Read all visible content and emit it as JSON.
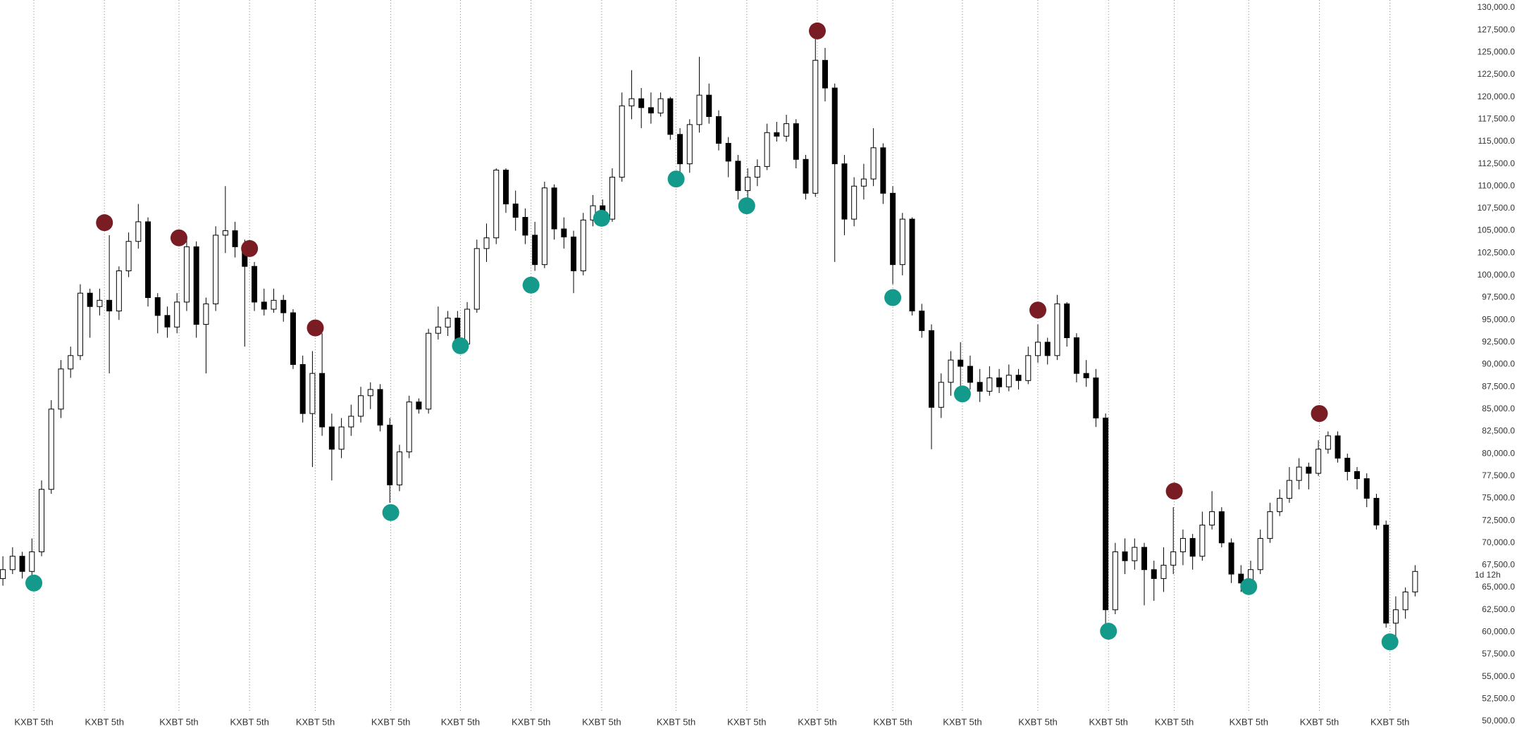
{
  "chart_data": {
    "type": "candlestick",
    "up_color": "#ffffff",
    "down_color": "#000000",
    "outline_color": "#000000",
    "countdown": "1d 12h",
    "xlim": [
      -0.3,
      146.7
    ],
    "xticks": [
      {
        "value": 3.2,
        "label": "KXBT 5th"
      },
      {
        "value": 10.5,
        "label": "KXBT 5th"
      },
      {
        "value": 18.2,
        "label": "KXBT 5th"
      },
      {
        "value": 25.5,
        "label": "KXBT 5th"
      },
      {
        "value": 32.3,
        "label": "KXBT 5th"
      },
      {
        "value": 40.1,
        "label": "KXBT 5th"
      },
      {
        "value": 47.3,
        "label": "KXBT 5th"
      },
      {
        "value": 54.6,
        "label": "KXBT 5th"
      },
      {
        "value": 61.9,
        "label": "KXBT 5th"
      },
      {
        "value": 69.6,
        "label": "KXBT 5th"
      },
      {
        "value": 76.9,
        "label": "KXBT 5th"
      },
      {
        "value": 84.2,
        "label": "KXBT 5th"
      },
      {
        "value": 92.0,
        "label": "KXBT 5th"
      },
      {
        "value": 99.2,
        "label": "KXBT 5th"
      },
      {
        "value": 107.0,
        "label": "KXBT 5th"
      },
      {
        "value": 114.3,
        "label": "KXBT 5th"
      },
      {
        "value": 121.1,
        "label": "KXBT 5th"
      },
      {
        "value": 128.8,
        "label": "KXBT 5th"
      },
      {
        "value": 136.1,
        "label": "KXBT 5th"
      },
      {
        "value": 143.4,
        "label": "KXBT 5th"
      }
    ],
    "grid": "x-dotted",
    "ylim": [
      50000,
      130000
    ],
    "yticks": [
      {
        "value": 130000,
        "label": "130,000.0"
      },
      {
        "value": 127500,
        "label": "127,500.0"
      },
      {
        "value": 125000,
        "label": "125,000.0"
      },
      {
        "value": 122500,
        "label": "122,500.0"
      },
      {
        "value": 120000,
        "label": "120,000.0"
      },
      {
        "value": 117500,
        "label": "117,500.0"
      },
      {
        "value": 115000,
        "label": "115,000.0"
      },
      {
        "value": 112500,
        "label": "112,500.0"
      },
      {
        "value": 110000,
        "label": "110,000.0"
      },
      {
        "value": 107500,
        "label": "107,500.0"
      },
      {
        "value": 105000,
        "label": "105,000.0"
      },
      {
        "value": 102500,
        "label": "102,500.0"
      },
      {
        "value": 100000,
        "label": "100,000.0"
      },
      {
        "value": 97500,
        "label": "97,500.0"
      },
      {
        "value": 95000,
        "label": "95,000.0"
      },
      {
        "value": 92500,
        "label": "92,500.0"
      },
      {
        "value": 90000,
        "label": "90,000.0"
      },
      {
        "value": 87500,
        "label": "87,500.0"
      },
      {
        "value": 85000,
        "label": "85,000.0"
      },
      {
        "value": 82500,
        "label": "82,500.0"
      },
      {
        "value": 80000,
        "label": "80,000.0"
      },
      {
        "value": 77500,
        "label": "77,500.0"
      },
      {
        "value": 75000,
        "label": "75,000.0"
      },
      {
        "value": 72500,
        "label": "72,500.0"
      },
      {
        "value": 70000,
        "label": "70,000.0"
      },
      {
        "value": 67500,
        "label": "67,500.0"
      },
      {
        "value": 65000,
        "label": "65,000.0"
      },
      {
        "value": 62500,
        "label": "62,500.0"
      },
      {
        "value": 60000,
        "label": "60,000.0"
      },
      {
        "value": 57500,
        "label": "57,500.0"
      },
      {
        "value": 55000,
        "label": "55,000.0"
      },
      {
        "value": 52500,
        "label": "52,500.0"
      },
      {
        "value": 50000,
        "label": "50,000.0"
      }
    ],
    "open": [
      66000,
      67000,
      68500,
      66800,
      69000,
      76000,
      85000,
      89500,
      91000,
      98000,
      96500,
      97200,
      96000,
      100500,
      103800,
      106000,
      97500,
      95500,
      94200,
      97000,
      103200,
      94500,
      96800,
      104500,
      105000,
      103200,
      101000,
      97000,
      96200,
      97200,
      95800,
      90000,
      84500,
      89000,
      83000,
      80500,
      83000,
      84200,
      86500,
      87200,
      83200,
      76500,
      80200,
      85800,
      85000,
      93500,
      94200,
      95200,
      92300,
      96200,
      103000,
      104200,
      111800,
      108000,
      106500,
      104500,
      101200,
      109800,
      105200,
      104300,
      100500,
      106200,
      107800,
      106300,
      111000,
      119000,
      119800,
      118800,
      118200,
      119800,
      115800,
      112500,
      116900,
      120200,
      117800,
      114800,
      112800,
      109500,
      111000,
      112200,
      116000,
      115600,
      117000,
      113000,
      109200,
      124100,
      121000,
      112500,
      106300,
      110000,
      110800,
      114300,
      109200,
      101200,
      106300,
      96000,
      93800,
      85200,
      88000,
      90500,
      89800,
      88000,
      87000,
      88500,
      87500,
      88800,
      88200,
      91000,
      92500,
      91000,
      96800,
      93000,
      89000,
      88500,
      84000,
      62500,
      69000,
      68000,
      69500,
      67000,
      66000,
      67500,
      69000,
      70500,
      68500,
      72000,
      73500,
      70000,
      66500,
      65500,
      67000,
      70500,
      73500,
      75000,
      77000,
      78500,
      77800,
      80500,
      82000,
      79500,
      78000,
      77200,
      75000,
      72000,
      61000,
      62500,
      64500
    ],
    "high": [
      68500,
      69500,
      69000,
      70500,
      77000,
      86000,
      90500,
      92000,
      99000,
      98500,
      98500,
      104500,
      101000,
      104800,
      108000,
      106500,
      98000,
      96500,
      98000,
      104000,
      103800,
      97500,
      105500,
      110000,
      106000,
      104000,
      101500,
      98500,
      98500,
      97800,
      96200,
      91000,
      91500,
      93500,
      84500,
      84000,
      85500,
      87500,
      88000,
      87800,
      84000,
      81000,
      86500,
      86200,
      94000,
      96500,
      96000,
      96000,
      97000,
      104000,
      105800,
      112000,
      112000,
      109500,
      107500,
      106000,
      110500,
      110200,
      106500,
      105000,
      107000,
      109000,
      108500,
      112000,
      120500,
      123000,
      121000,
      120500,
      120500,
      120000,
      116500,
      117500,
      124500,
      121500,
      118500,
      115500,
      113500,
      112000,
      113000,
      117000,
      117200,
      118000,
      117500,
      113500,
      126500,
      125500,
      121500,
      113500,
      111000,
      112500,
      116500,
      114800,
      110000,
      107000,
      106500,
      96800,
      94500,
      89000,
      91500,
      92500,
      91000,
      89500,
      89800,
      89500,
      90000,
      89500,
      92000,
      94500,
      93000,
      97800,
      97000,
      93500,
      90500,
      89500,
      84500,
      70000,
      70500,
      70500,
      70000,
      68000,
      69500,
      74000,
      71500,
      71000,
      73500,
      75800,
      74000,
      70500,
      67500,
      68000,
      71500,
      74500,
      76000,
      78500,
      79500,
      79000,
      81500,
      82500,
      82500,
      80000,
      78500,
      77800,
      75500,
      72500,
      64000,
      65000,
      67500
    ],
    "low": [
      65200,
      66500,
      66000,
      65800,
      68500,
      75500,
      84000,
      88500,
      90500,
      93000,
      95500,
      89000,
      95000,
      99800,
      103000,
      96500,
      93500,
      93000,
      93500,
      96000,
      93000,
      89000,
      96000,
      102500,
      102000,
      92000,
      96000,
      95500,
      95800,
      94800,
      89500,
      83500,
      78500,
      82000,
      77000,
      79500,
      82000,
      83500,
      85000,
      82500,
      74500,
      75800,
      79500,
      84500,
      84500,
      92800,
      93200,
      91500,
      92000,
      95800,
      101500,
      103500,
      107000,
      105000,
      103500,
      100500,
      100800,
      104000,
      103000,
      98000,
      100000,
      105500,
      105500,
      106000,
      110500,
      117500,
      116500,
      117000,
      117800,
      115200,
      111000,
      111500,
      116000,
      117000,
      114000,
      111000,
      108500,
      108000,
      110000,
      111800,
      115000,
      115000,
      112000,
      108500,
      108800,
      119500,
      101500,
      104500,
      105500,
      108500,
      110000,
      108000,
      99000,
      100000,
      95500,
      93000,
      80500,
      84000,
      86500,
      86500,
      87200,
      85800,
      86500,
      86800,
      87000,
      87200,
      87800,
      90200,
      90000,
      90500,
      92000,
      88000,
      87500,
      83000,
      60200,
      62000,
      66500,
      67000,
      63000,
      63500,
      64500,
      66500,
      67500,
      67000,
      68000,
      71500,
      69500,
      65500,
      64500,
      65000,
      66500,
      70000,
      73000,
      74500,
      76000,
      76000,
      77500,
      80000,
      79000,
      77000,
      76000,
      74000,
      71500,
      60500,
      58500,
      61500,
      64000
    ],
    "close": [
      67000,
      68500,
      66800,
      69000,
      76000,
      85000,
      89500,
      91000,
      98000,
      96500,
      97200,
      96000,
      100500,
      103800,
      106000,
      97500,
      95500,
      94200,
      97000,
      103200,
      94500,
      96800,
      104500,
      105000,
      103200,
      101000,
      97000,
      96200,
      97200,
      95800,
      90000,
      84500,
      89000,
      83000,
      80500,
      83000,
      84200,
      86500,
      87200,
      83200,
      76500,
      80200,
      85800,
      85000,
      93500,
      94200,
      95200,
      92300,
      96200,
      103000,
      104200,
      111800,
      108000,
      106500,
      104500,
      101200,
      109800,
      105200,
      104300,
      100500,
      106200,
      107800,
      106300,
      111000,
      119000,
      119800,
      118800,
      118200,
      119800,
      115800,
      112500,
      116900,
      120200,
      117800,
      114800,
      112800,
      109500,
      111000,
      112200,
      116000,
      115600,
      117000,
      113000,
      109200,
      124100,
      121000,
      112500,
      106300,
      110000,
      110800,
      114300,
      109200,
      101200,
      106300,
      96000,
      93800,
      85200,
      88000,
      90500,
      89800,
      88000,
      87000,
      88500,
      87500,
      88800,
      88200,
      91000,
      92500,
      91000,
      96800,
      93000,
      89000,
      88500,
      84000,
      62500,
      69000,
      68000,
      69500,
      67000,
      66000,
      67500,
      69000,
      70500,
      68500,
      72000,
      73500,
      70000,
      66500,
      65500,
      67000,
      70500,
      73500,
      75000,
      77000,
      78500,
      77800,
      80500,
      82000,
      79500,
      78000,
      77200,
      75000,
      72000,
      61000,
      62500,
      64500,
      66800
    ],
    "pivots": [
      {
        "color": "#7a1c24",
        "x": [
          10.5,
          18.2,
          25.5,
          32.3,
          84.2,
          107.0,
          121.1,
          136.1
        ],
        "values": [
          105900,
          104200,
          103000,
          94100,
          127400,
          96100,
          75800,
          84500
        ]
      },
      {
        "color": "#139a8a",
        "x": [
          3.2,
          40.1,
          47.3,
          54.6,
          61.9,
          69.6,
          76.9,
          92.0,
          99.2,
          114.3,
          128.8,
          143.4
        ],
        "values": [
          65500,
          73400,
          92100,
          98900,
          106400,
          110800,
          107800,
          97500,
          86700,
          60100,
          65100,
          58900
        ]
      }
    ]
  }
}
